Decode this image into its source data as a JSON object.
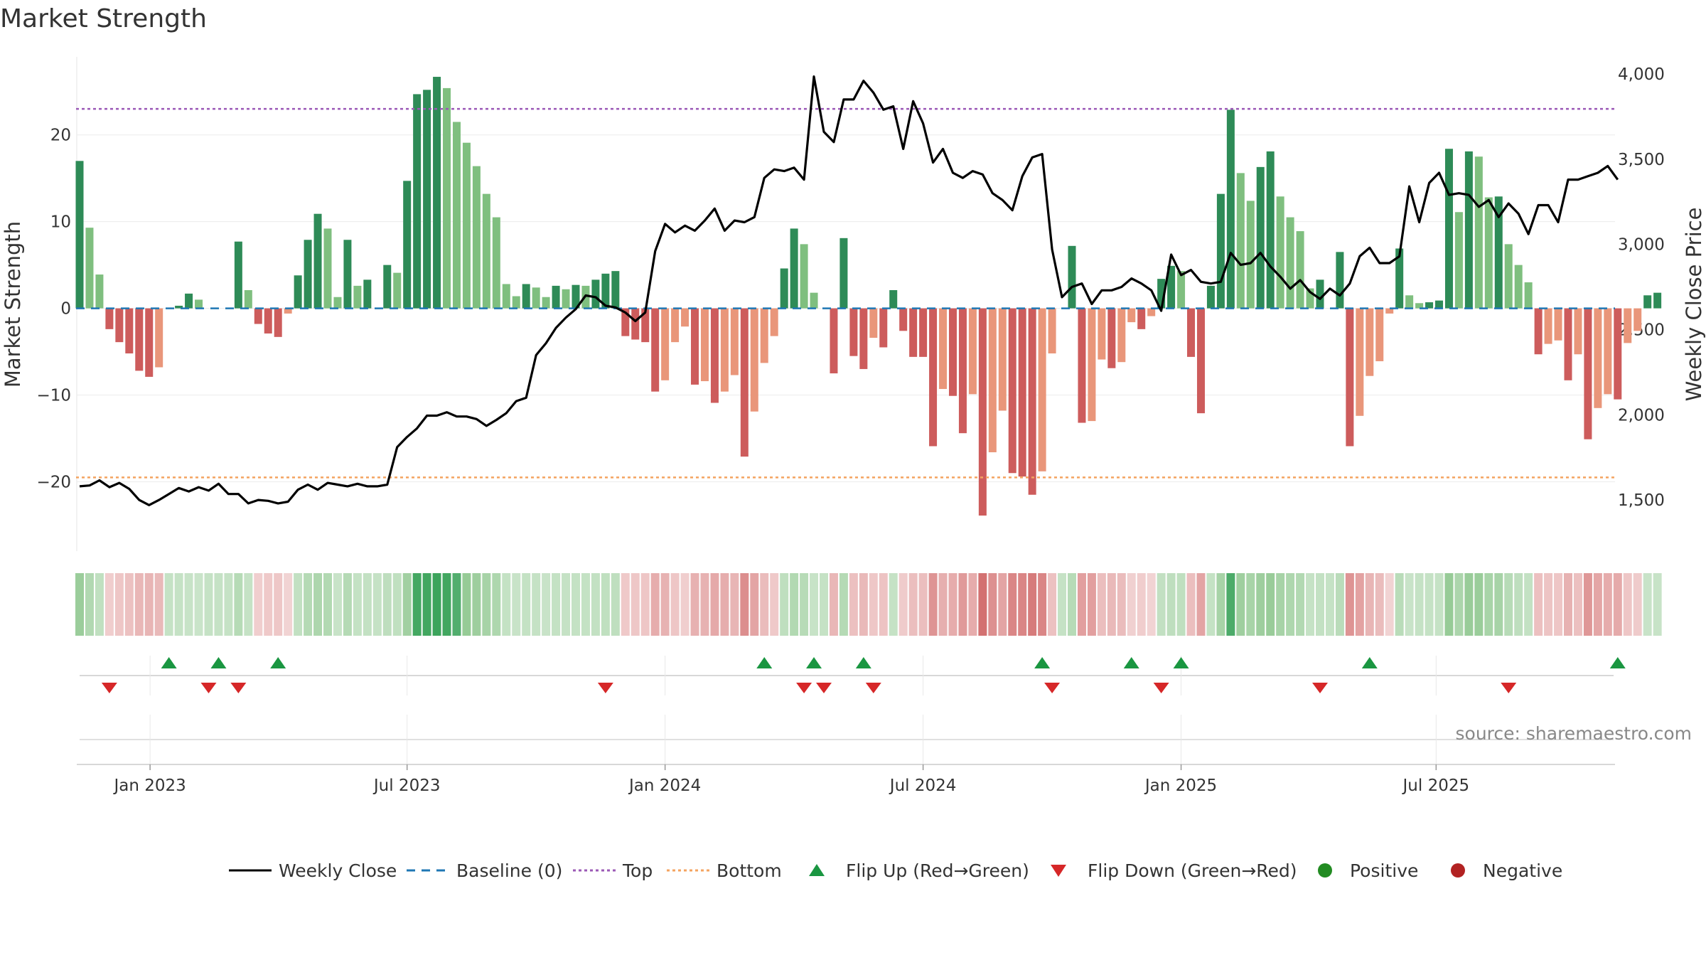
{
  "title": "Market Strength",
  "source": "source: sharemaestro.com",
  "colors": {
    "pos_strong": "#2e8b57",
    "pos_light": "#7fbf7f",
    "neg_strong": "#cd5c5c",
    "neg_light": "#e9967a",
    "top": "#9b59b6",
    "bottom": "#f4a460",
    "baseline": "#1f77b4",
    "close": "#000000",
    "flip_up": "#1a9641",
    "flip_down": "#d62728",
    "positive": "#228b22",
    "negative": "#b22222"
  },
  "chart_data": {
    "type": "bar+line",
    "title": "Market Strength",
    "ylabel_left": "Market Strength",
    "ylabel_right": "Weekly Close Price",
    "ylim_left": [
      -28,
      29
    ],
    "ylim_right": [
      1200,
      4100
    ],
    "yticks_left": [
      20,
      10,
      0,
      -10,
      -20
    ],
    "ytick_labels_left": [
      "20",
      "10",
      "0",
      "−10",
      "−20"
    ],
    "yticks_right": [
      4000,
      3500,
      3000,
      2500,
      2000,
      1500
    ],
    "ytick_labels_right": [
      "4,000",
      "3,500",
      "3,000",
      "2,500",
      "2,000",
      "1,500"
    ],
    "x_months": [
      "Jan 2023",
      "Jul 2023",
      "Jan 2024",
      "Jul 2024",
      "Jan 2025",
      "Jul 2025"
    ],
    "x_month_weeks": [
      7.1,
      33,
      59,
      85,
      111,
      136.7
    ],
    "top_level": 23,
    "bottom_level": -19.5,
    "baseline": 0,
    "strength": [
      17,
      9.3,
      3.9,
      -2.4,
      -3.9,
      -5.2,
      -7.2,
      -7.9,
      -6.8,
      0,
      0.3,
      1.7,
      1,
      0,
      0,
      0,
      7.7,
      2.1,
      -1.8,
      -2.9,
      -3.3,
      -0.6,
      3.8,
      7.9,
      10.9,
      9.2,
      1.3,
      7.9,
      2.6,
      3.3,
      0,
      5,
      4.1,
      14.7,
      24.7,
      25.2,
      26.7,
      25.4,
      21.5,
      19.1,
      16.4,
      13.2,
      10.5,
      2.8,
      1.4,
      2.8,
      2.4,
      1.3,
      2.6,
      2.2,
      2.7,
      2.6,
      3.3,
      4,
      4.3,
      -3.2,
      -3.6,
      -3.9,
      -9.6,
      -8.3,
      -3.9,
      -2.1,
      -8.8,
      -8.4,
      -10.9,
      -9.6,
      -7.7,
      -17.1,
      -11.9,
      -6.3,
      -3.2,
      4.6,
      9.2,
      7.4,
      1.8,
      0,
      -7.5,
      8.1,
      -5.5,
      -7,
      -3.4,
      -4.5,
      2.1,
      -2.6,
      -5.6,
      -5.6,
      -15.9,
      -9.3,
      -10.1,
      -14.4,
      -9.9,
      -23.9,
      -16.6,
      -11.8,
      -19,
      -19.4,
      -21.5,
      -18.8,
      -5.2,
      0,
      7.2,
      -13.2,
      -13,
      -5.9,
      -6.9,
      -6.2,
      -1.6,
      -2.4,
      -0.9,
      3.4,
      4.9,
      4.3,
      -5.6,
      -12.1,
      2.6,
      13.2,
      22.9,
      15.6,
      12.4,
      16.3,
      18.1,
      12.9,
      10.5,
      8.9,
      2.3,
      3.3,
      0,
      6.5,
      -15.9,
      -12.4,
      -7.8,
      -6.1,
      -0.6,
      6.9,
      1.5,
      0.6,
      0.7,
      0.9,
      18.4,
      11.1,
      18.1,
      17.5,
      12.8,
      12.9,
      7.4,
      5,
      3,
      -5.3,
      -4.1,
      -3.7,
      -8.3,
      -5.3,
      -15.1,
      -11.5,
      -9.9,
      -10.5,
      -4,
      -2.6,
      1.5,
      1.8
    ],
    "weekly_close": [
      1580,
      1585,
      1615,
      1575,
      1600,
      1565,
      1500,
      1470,
      1500,
      1535,
      1570,
      1550,
      1575,
      1555,
      1595,
      1535,
      1535,
      1480,
      1500,
      1495,
      1480,
      1490,
      1560,
      1590,
      1560,
      1600,
      1590,
      1580,
      1595,
      1580,
      1580,
      1590,
      1810,
      1870,
      1920,
      1995,
      1995,
      2015,
      1990,
      1990,
      1975,
      1935,
      1970,
      2010,
      2080,
      2100,
      2350,
      2420,
      2510,
      2570,
      2620,
      2700,
      2690,
      2640,
      2630,
      2600,
      2550,
      2600,
      2960,
      3120,
      3070,
      3110,
      3080,
      3140,
      3210,
      3080,
      3140,
      3130,
      3160,
      3390,
      3440,
      3430,
      3450,
      3380,
      3985,
      3660,
      3600,
      3850,
      3850,
      3960,
      3890,
      3790,
      3810,
      3560,
      3840,
      3710,
      3480,
      3560,
      3420,
      3390,
      3430,
      3410,
      3300,
      3260,
      3200,
      3400,
      3510,
      3530,
      2970,
      2690,
      2750,
      2770,
      2650,
      2730,
      2730,
      2750,
      2800,
      2770,
      2730,
      2610,
      2940,
      2820,
      2850,
      2780,
      2770,
      2780,
      2950,
      2880,
      2890,
      2950,
      2870,
      2810,
      2740,
      2790,
      2720,
      2680,
      2740,
      2700,
      2770,
      2930,
      2980,
      2890,
      2890,
      2930,
      3340,
      3130,
      3360,
      3420,
      3290,
      3300,
      3290,
      3220,
      3260,
      3160,
      3240,
      3180,
      3060,
      3230,
      3230,
      3130,
      3380,
      3380,
      3400,
      3420,
      3460,
      3380
    ],
    "flip_up_weeks": [
      9,
      14,
      20,
      69,
      74,
      79,
      97,
      106,
      111,
      130,
      155
    ],
    "flip_down_weeks": [
      3,
      13,
      16,
      53,
      73,
      75,
      80,
      98,
      109,
      125,
      144
    ],
    "legend": [
      "Weekly Close",
      "Baseline (0)",
      "Top",
      "Bottom",
      "Flip Up (Red→Green)",
      "Flip Down (Green→Red)",
      "Positive",
      "Negative"
    ]
  }
}
